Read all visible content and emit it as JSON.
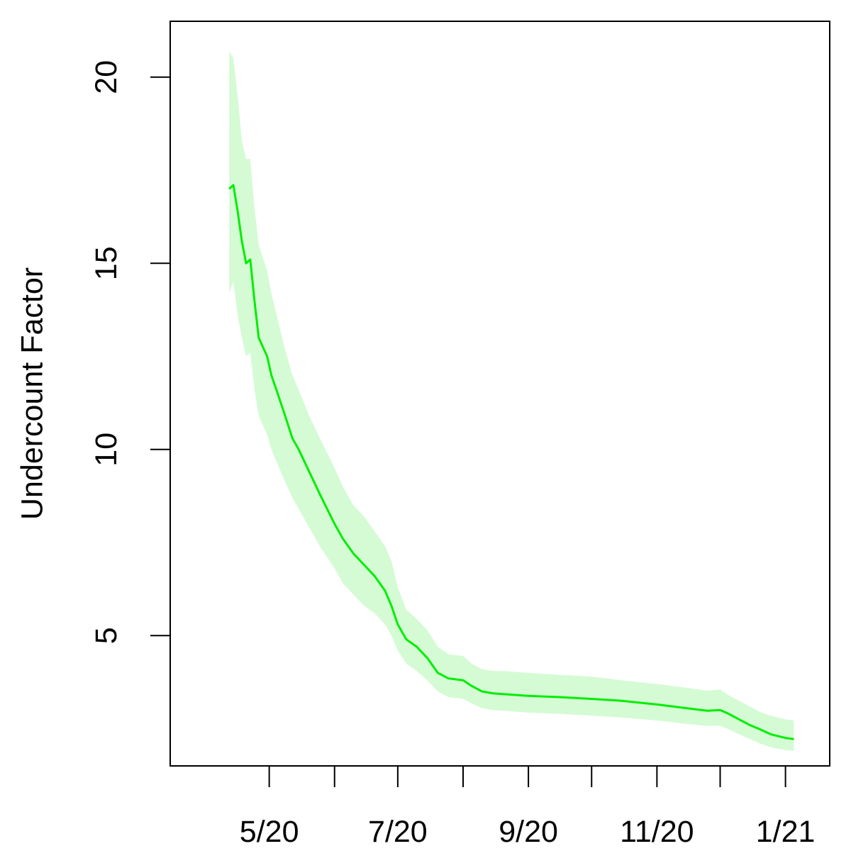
{
  "chart_data": {
    "type": "line",
    "title": "",
    "xlabel": "",
    "ylabel": "Undercount Factor",
    "xlim": [
      "2020-03-15",
      "2021-01-22"
    ],
    "ylim": [
      1.5,
      21.5
    ],
    "x_ticks": [
      {
        "date": "2020-05-01",
        "label": "5/20"
      },
      {
        "date": "2020-06-01",
        "label": ""
      },
      {
        "date": "2020-07-01",
        "label": "7/20"
      },
      {
        "date": "2020-08-01",
        "label": ""
      },
      {
        "date": "2020-09-01",
        "label": "9/20"
      },
      {
        "date": "2020-10-01",
        "label": ""
      },
      {
        "date": "2020-11-01",
        "label": "11/20"
      },
      {
        "date": "2020-12-01",
        "label": ""
      },
      {
        "date": "2021-01-01",
        "label": "1/21"
      }
    ],
    "y_ticks": [
      {
        "value": 5,
        "label": "5"
      },
      {
        "value": 10,
        "label": "10"
      },
      {
        "value": 15,
        "label": "15"
      },
      {
        "value": 20,
        "label": "20"
      }
    ],
    "grid": false,
    "legend": "none",
    "series": [
      {
        "color": "#00ee00",
        "band_color": "#d5fbd5",
        "x": [
          "2020-04-12",
          "2020-04-14",
          "2020-04-16",
          "2020-04-18",
          "2020-04-20",
          "2020-04-22",
          "2020-04-24",
          "2020-04-26",
          "2020-04-30",
          "2020-05-02",
          "2020-05-05",
          "2020-05-08",
          "2020-05-12",
          "2020-05-15",
          "2020-05-20",
          "2020-05-25",
          "2020-06-01",
          "2020-06-05",
          "2020-06-10",
          "2020-06-15",
          "2020-06-20",
          "2020-06-25",
          "2020-06-28",
          "2020-07-01",
          "2020-07-05",
          "2020-07-10",
          "2020-07-15",
          "2020-07-20",
          "2020-07-25",
          "2020-08-01",
          "2020-08-05",
          "2020-08-10",
          "2020-08-15",
          "2020-08-20",
          "2020-09-01",
          "2020-09-15",
          "2020-10-01",
          "2020-10-15",
          "2020-11-01",
          "2020-11-15",
          "2020-11-25",
          "2020-12-01",
          "2020-12-05",
          "2020-12-10",
          "2020-12-15",
          "2020-12-20",
          "2020-12-25",
          "2021-01-01",
          "2021-01-05"
        ],
        "values": [
          17.0,
          17.1,
          16.4,
          15.6,
          15.0,
          15.1,
          14.0,
          13.0,
          12.5,
          12.0,
          11.5,
          11.0,
          10.3,
          10.0,
          9.4,
          8.8,
          8.0,
          7.6,
          7.2,
          6.9,
          6.6,
          6.2,
          5.8,
          5.3,
          4.9,
          4.7,
          4.4,
          4.0,
          3.85,
          3.8,
          3.65,
          3.5,
          3.45,
          3.43,
          3.38,
          3.35,
          3.3,
          3.25,
          3.15,
          3.05,
          2.98,
          3.0,
          2.9,
          2.75,
          2.6,
          2.48,
          2.35,
          2.25,
          2.22
        ],
        "lower": [
          14.2,
          14.5,
          13.6,
          13.0,
          12.5,
          12.6,
          11.6,
          10.9,
          10.4,
          10.0,
          9.6,
          9.2,
          8.7,
          8.4,
          7.9,
          7.4,
          6.8,
          6.4,
          6.1,
          5.8,
          5.6,
          5.3,
          5.0,
          4.6,
          4.25,
          4.05,
          3.8,
          3.5,
          3.35,
          3.3,
          3.18,
          3.05,
          3.0,
          2.98,
          2.93,
          2.9,
          2.85,
          2.8,
          2.72,
          2.63,
          2.57,
          2.58,
          2.48,
          2.35,
          2.22,
          2.1,
          2.0,
          1.92,
          1.9
        ],
        "upper": [
          20.7,
          20.5,
          19.5,
          18.3,
          17.8,
          17.8,
          16.5,
          15.5,
          14.8,
          14.2,
          13.5,
          12.8,
          12.0,
          11.6,
          10.9,
          10.3,
          9.5,
          9.0,
          8.5,
          8.2,
          7.8,
          7.4,
          7.0,
          6.3,
          5.7,
          5.45,
          5.15,
          4.7,
          4.5,
          4.45,
          4.25,
          4.1,
          4.05,
          4.05,
          4.0,
          3.95,
          3.9,
          3.8,
          3.7,
          3.6,
          3.52,
          3.55,
          3.4,
          3.25,
          3.1,
          2.95,
          2.85,
          2.75,
          2.72
        ]
      }
    ]
  }
}
